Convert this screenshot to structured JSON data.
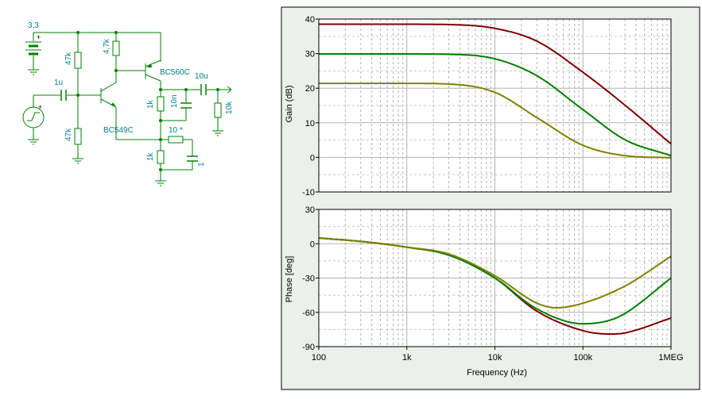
{
  "schematic": {
    "supply_voltage": "3,3",
    "input_cap": "1u",
    "r_top_left": "47k",
    "r_bottom_left": "47k",
    "r_collector": "4,7k",
    "q1": "BC549C",
    "q2": "BC560C",
    "output_cap": "10u",
    "r_load": "10k",
    "r_emitter_upper": "1k",
    "cap_10n": "10n",
    "r_feedback": "10 *",
    "r_emitter_lower": "1k",
    "cap_1": "1",
    "plus_supply": "+",
    "plus_source": "+"
  },
  "colors": {
    "wire": "#008000",
    "component_label": "#00808b",
    "series_1": "#800000",
    "series_2": "#008000",
    "series_3": "#808000",
    "grid": "#b4b4b4",
    "panel_bg": "#ebf0eb"
  },
  "chart_data": [
    {
      "type": "line",
      "ylabel": "Gain (dB)",
      "xscale": "log",
      "xlim": [
        100,
        1000000
      ],
      "ylim": [
        -10,
        40
      ],
      "yticks": [
        "40",
        "30",
        "20",
        "10",
        "0",
        "-10"
      ],
      "grid": true,
      "series": [
        {
          "color": "#800000",
          "x": [
            100,
            1000,
            3000,
            10000,
            30000,
            100000,
            300000,
            1000000
          ],
          "values": [
            38.5,
            38.5,
            38.4,
            37.3,
            33.6,
            24.6,
            15.1,
            3.9
          ]
        },
        {
          "color": "#008000",
          "x": [
            100,
            1000,
            3000,
            10000,
            30000,
            100000,
            300000,
            1000000
          ],
          "values": [
            29.9,
            29.9,
            29.8,
            28.5,
            23.6,
            13.8,
            5.1,
            0.5
          ]
        },
        {
          "color": "#808000",
          "x": [
            100,
            1000,
            3000,
            10000,
            30000,
            100000,
            300000,
            1000000
          ],
          "values": [
            21.4,
            21.4,
            21.2,
            18.8,
            11.5,
            3.5,
            0.5,
            -0.1
          ]
        }
      ]
    },
    {
      "type": "line",
      "ylabel": "Phase [deg]",
      "xlabel": "Frequency (Hz)",
      "xscale": "log",
      "xlim": [
        100,
        1000000
      ],
      "ylim": [
        -90,
        30
      ],
      "yticks": [
        "30",
        "0",
        "-30",
        "-60",
        "-90"
      ],
      "xticks": [
        "100",
        "1k",
        "10k",
        "100k",
        "1MEG"
      ],
      "grid": true,
      "series": [
        {
          "color": "#800000",
          "x": [
            100,
            300,
            1000,
            3000,
            10000,
            30000,
            100000,
            200000,
            300000,
            1000000
          ],
          "values": [
            5,
            2,
            -3,
            -10,
            -30,
            -59,
            -76,
            -79,
            -78,
            -65
          ]
        },
        {
          "color": "#008000",
          "x": [
            100,
            300,
            1000,
            3000,
            10000,
            30000,
            100000,
            200000,
            300000,
            1000000
          ],
          "values": [
            5,
            2,
            -3,
            -10,
            -30,
            -57,
            -70,
            -67,
            -61,
            -30
          ]
        },
        {
          "color": "#808000",
          "x": [
            100,
            300,
            1000,
            3000,
            10000,
            30000,
            50000,
            100000,
            300000,
            1000000
          ],
          "values": [
            5,
            2,
            -3,
            -9,
            -28,
            -52,
            -56,
            -52,
            -37,
            -11
          ]
        }
      ]
    }
  ]
}
